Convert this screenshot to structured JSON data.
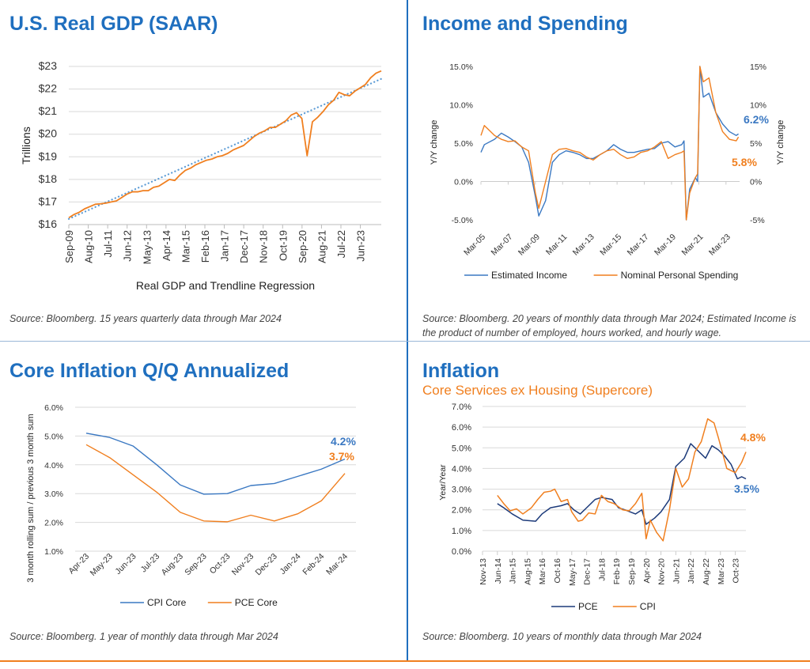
{
  "panels": {
    "gdp": {
      "title": "U.S. Real GDP (SAAR)",
      "source": "Source: Bloomberg. 15 years quarterly data through Mar 2024"
    },
    "income": {
      "title": "Income and Spending",
      "source": "Source: Bloomberg. 20 years of monthly data through Mar 2024; Estimated Income is the product of number of employed, hours worked, and hourly wage."
    },
    "core": {
      "title": "Core Inflation Q/Q Annualized",
      "source": "Source: Bloomberg. 1 year of monthly data through Mar 2024"
    },
    "supercore": {
      "title": "Inflation",
      "subtitle": "Core Services ex Housing (Supercore)",
      "source": "Source: Bloomberg. 10 years of monthly data through Mar 2024"
    }
  },
  "colors": {
    "title": "#1f6fbf",
    "orange": "#f07f1f",
    "blue": "#3a78c2",
    "navy": "#1c3a7a",
    "trend": "#5b9bd5"
  },
  "chart_data": [
    {
      "type": "line",
      "ylabel": "Trillions",
      "xlabel": "Real GDP and Trendline Regression",
      "ylim": [
        16,
        23
      ],
      "yticks": [
        "$16",
        "$17",
        "$18",
        "$19",
        "$20",
        "$21",
        "$22",
        "$23"
      ],
      "xticks": [
        "Sep-09",
        "Aug-10",
        "Jul-11",
        "Jun-12",
        "May-13",
        "Apr-14",
        "Mar-15",
        "Feb-16",
        "Jan-17",
        "Dec-17",
        "Nov-18",
        "Oct-19",
        "Sep-20",
        "Aug-21",
        "Jul-22",
        "Jun-23"
      ],
      "grid": true,
      "series": [
        {
          "style": "solid",
          "color": "#f07f1f",
          "values": [
            16.3,
            16.45,
            16.55,
            16.7,
            16.8,
            16.9,
            16.92,
            16.95,
            17.0,
            17.05,
            17.2,
            17.35,
            17.45,
            17.45,
            17.5,
            17.5,
            17.65,
            17.7,
            17.85,
            18.0,
            17.95,
            18.2,
            18.4,
            18.5,
            18.65,
            18.75,
            18.85,
            18.9,
            19.0,
            19.05,
            19.15,
            19.3,
            19.4,
            19.5,
            19.7,
            19.9,
            20.05,
            20.15,
            20.3,
            20.3,
            20.45,
            20.6,
            20.85,
            20.95,
            20.7,
            19.05,
            20.55,
            20.75,
            21.0,
            21.3,
            21.5,
            21.85,
            21.75,
            21.7,
            21.9,
            22.05,
            22.2,
            22.5,
            22.7,
            22.8
          ]
        },
        {
          "style": "dotted",
          "color": "#5b9bd5",
          "values": [
            16.25,
            22.45
          ]
        }
      ]
    },
    {
      "type": "line",
      "ylabel_left": "Y/Y change",
      "ylabel_right": "Y/Y change",
      "ylim": [
        -5,
        15
      ],
      "yticks_left": [
        "-5.0%",
        "0.0%",
        "5.0%",
        "10.0%",
        "15.0%"
      ],
      "yticks_right": [
        "-5%",
        "0%",
        "5%",
        "10%",
        "15%"
      ],
      "xticks": [
        "Mar-05",
        "Mar-07",
        "Mar-09",
        "Mar-11",
        "Mar-13",
        "Mar-15",
        "Mar-17",
        "Mar-19",
        "Mar-21",
        "Mar-23"
      ],
      "legend": "bottom",
      "annotations": [
        {
          "text": "6.2%",
          "color": "#3a78c2"
        },
        {
          "text": "5.8%",
          "color": "#f07f1f"
        }
      ],
      "series": [
        {
          "name": "Estimated Income",
          "color": "#3a78c2",
          "points": [
            [
              "Mar-05",
              3.8
            ],
            [
              "Jun-05",
              4.8
            ],
            [
              "Mar-06",
              5.5
            ],
            [
              "Sep-06",
              6.3
            ],
            [
              "Mar-07",
              5.8
            ],
            [
              "Sep-07",
              5.2
            ],
            [
              "Mar-08",
              4.5
            ],
            [
              "Sep-08",
              2.5
            ],
            [
              "Mar-09",
              -2.0
            ],
            [
              "Jun-09",
              -4.5
            ],
            [
              "Dec-09",
              -2.5
            ],
            [
              "Jun-10",
              2.5
            ],
            [
              "Dec-10",
              3.5
            ],
            [
              "Jun-11",
              4.0
            ],
            [
              "Dec-11",
              3.8
            ],
            [
              "Jun-12",
              3.5
            ],
            [
              "Dec-12",
              3.0
            ],
            [
              "Jun-13",
              3.0
            ],
            [
              "Dec-13",
              3.5
            ],
            [
              "Jun-14",
              4.0
            ],
            [
              "Dec-14",
              4.8
            ],
            [
              "Jun-15",
              4.2
            ],
            [
              "Dec-15",
              3.8
            ],
            [
              "Jun-16",
              3.8
            ],
            [
              "Dec-16",
              4.0
            ],
            [
              "Jun-17",
              4.2
            ],
            [
              "Dec-17",
              4.3
            ],
            [
              "Jun-18",
              5.0
            ],
            [
              "Dec-18",
              5.2
            ],
            [
              "Jun-19",
              4.5
            ],
            [
              "Dec-19",
              4.8
            ],
            [
              "Feb-20",
              5.3
            ],
            [
              "Apr-20",
              -5.0
            ],
            [
              "Jul-20",
              -1.0
            ],
            [
              "Dec-20",
              0.5
            ],
            [
              "Feb-21",
              0.0
            ],
            [
              "Apr-21",
              15.0
            ],
            [
              "Jul-21",
              11.0
            ],
            [
              "Dec-21",
              11.5
            ],
            [
              "Jun-22",
              9.0
            ],
            [
              "Dec-22",
              7.5
            ],
            [
              "Jun-23",
              6.5
            ],
            [
              "Dec-23",
              6.0
            ],
            [
              "Feb-24",
              6.2
            ]
          ]
        },
        {
          "name": "Nominal Personal Spending",
          "color": "#f07f1f",
          "points": [
            [
              "Mar-05",
              6.0
            ],
            [
              "Jun-05",
              7.3
            ],
            [
              "Mar-06",
              6.0
            ],
            [
              "Sep-06",
              5.5
            ],
            [
              "Mar-07",
              5.2
            ],
            [
              "Sep-07",
              5.3
            ],
            [
              "Mar-08",
              4.5
            ],
            [
              "Sep-08",
              4.0
            ],
            [
              "Mar-09",
              -1.5
            ],
            [
              "Jun-09",
              -3.5
            ],
            [
              "Dec-09",
              0.0
            ],
            [
              "Jun-10",
              3.5
            ],
            [
              "Dec-10",
              4.2
            ],
            [
              "Jun-11",
              4.3
            ],
            [
              "Dec-11",
              4.0
            ],
            [
              "Jun-12",
              3.8
            ],
            [
              "Dec-12",
              3.2
            ],
            [
              "Jun-13",
              2.8
            ],
            [
              "Dec-13",
              3.5
            ],
            [
              "Jun-14",
              4.0
            ],
            [
              "Dec-14",
              4.2
            ],
            [
              "Jun-15",
              3.5
            ],
            [
              "Dec-15",
              3.0
            ],
            [
              "Jun-16",
              3.2
            ],
            [
              "Dec-16",
              3.8
            ],
            [
              "Jun-17",
              4.0
            ],
            [
              "Dec-17",
              4.5
            ],
            [
              "Jun-18",
              5.2
            ],
            [
              "Dec-18",
              3.0
            ],
            [
              "Jun-19",
              3.5
            ],
            [
              "Dec-19",
              3.8
            ],
            [
              "Feb-20",
              4.0
            ],
            [
              "Apr-20",
              -5.0
            ],
            [
              "Jul-20",
              -1.5
            ],
            [
              "Dec-20",
              0.5
            ],
            [
              "Feb-21",
              1.0
            ],
            [
              "Apr-21",
              15.0
            ],
            [
              "Jul-21",
              13.0
            ],
            [
              "Dec-21",
              13.5
            ],
            [
              "Jun-22",
              9.0
            ],
            [
              "Dec-22",
              6.5
            ],
            [
              "Jun-23",
              5.5
            ],
            [
              "Dec-23",
              5.3
            ],
            [
              "Feb-24",
              5.8
            ]
          ]
        }
      ]
    },
    {
      "type": "line",
      "ylabel": "3 month rolling sum / previous 3 month sum",
      "ylim": [
        1,
        6
      ],
      "yticks": [
        "1.0%",
        "2.0%",
        "3.0%",
        "4.0%",
        "5.0%",
        "6.0%"
      ],
      "categories": [
        "Apr-23",
        "May-23",
        "Jun-23",
        "Jul-23",
        "Aug-23",
        "Sep-23",
        "Oct-23",
        "Nov-23",
        "Dec-23",
        "Jan-24",
        "Feb-24",
        "Mar-24"
      ],
      "legend": "bottom",
      "grid": true,
      "annotations": [
        {
          "text": "4.2%",
          "color": "#3a78c2"
        },
        {
          "text": "3.7%",
          "color": "#f07f1f"
        }
      ],
      "series": [
        {
          "name": "CPI Core",
          "color": "#3a78c2",
          "values": [
            5.1,
            4.95,
            4.65,
            4.0,
            3.3,
            2.98,
            3.0,
            3.28,
            3.35,
            3.6,
            3.85,
            4.2
          ]
        },
        {
          "name": "PCE Core",
          "color": "#f07f1f",
          "values": [
            4.7,
            4.25,
            3.65,
            3.05,
            2.35,
            2.05,
            2.02,
            2.25,
            2.05,
            2.3,
            2.75,
            3.7
          ]
        }
      ]
    },
    {
      "type": "line",
      "ylabel": "Year/Year",
      "ylim": [
        0,
        7
      ],
      "yticks": [
        "0.0%",
        "1.0%",
        "2.0%",
        "3.0%",
        "4.0%",
        "5.0%",
        "6.0%",
        "7.0%"
      ],
      "xticks": [
        "Nov-13",
        "Jun-14",
        "Jan-15",
        "Aug-15",
        "Mar-16",
        "Oct-16",
        "May-17",
        "Dec-17",
        "Jul-18",
        "Feb-19",
        "Sep-19",
        "Apr-20",
        "Nov-20",
        "Jun-21",
        "Jan-22",
        "Aug-22",
        "Mar-23",
        "Oct-23"
      ],
      "legend": "bottom",
      "grid": true,
      "annotations": [
        {
          "text": "4.8%",
          "color": "#f07f1f"
        },
        {
          "text": "3.5%",
          "color": "#3a78c2"
        }
      ],
      "series": [
        {
          "name": "PCE",
          "color": "#1c3a7a",
          "points": [
            [
              "Jun-14",
              2.3
            ],
            [
              "Sep-14",
              2.1
            ],
            [
              "Jan-15",
              1.8
            ],
            [
              "Jun-15",
              1.5
            ],
            [
              "Dec-15",
              1.45
            ],
            [
              "Mar-16",
              1.8
            ],
            [
              "Jul-16",
              2.1
            ],
            [
              "Dec-16",
              2.2
            ],
            [
              "Mar-17",
              2.3
            ],
            [
              "Jun-17",
              2.0
            ],
            [
              "Sep-17",
              1.8
            ],
            [
              "Dec-17",
              2.1
            ],
            [
              "Apr-18",
              2.5
            ],
            [
              "Jul-18",
              2.6
            ],
            [
              "Dec-18",
              2.5
            ],
            [
              "Mar-19",
              2.1
            ],
            [
              "Jun-19",
              2.0
            ],
            [
              "Nov-19",
              1.8
            ],
            [
              "Feb-20",
              2.0
            ],
            [
              "Apr-20",
              1.3
            ],
            [
              "Aug-20",
              1.6
            ],
            [
              "Nov-20",
              1.9
            ],
            [
              "Mar-21",
              2.5
            ],
            [
              "Jun-21",
              4.1
            ],
            [
              "Oct-21",
              4.5
            ],
            [
              "Jan-22",
              5.2
            ],
            [
              "Apr-22",
              4.9
            ],
            [
              "Aug-22",
              4.5
            ],
            [
              "Nov-22",
              5.1
            ],
            [
              "Feb-23",
              4.9
            ],
            [
              "May-23",
              4.6
            ],
            [
              "Aug-23",
              4.2
            ],
            [
              "Nov-23",
              3.5
            ],
            [
              "Jan-24",
              3.6
            ],
            [
              "Mar-24",
              3.5
            ]
          ]
        },
        {
          "name": "CPI",
          "color": "#f07f1f",
          "points": [
            [
              "Jun-14",
              2.7
            ],
            [
              "Sep-14",
              2.3
            ],
            [
              "Dec-14",
              1.95
            ],
            [
              "Mar-15",
              2.05
            ],
            [
              "Jun-15",
              1.8
            ],
            [
              "Oct-15",
              2.1
            ],
            [
              "Jan-16",
              2.5
            ],
            [
              "Apr-16",
              2.85
            ],
            [
              "Jul-16",
              2.9
            ],
            [
              "Sep-16",
              3.0
            ],
            [
              "Dec-16",
              2.4
            ],
            [
              "Mar-17",
              2.5
            ],
            [
              "May-17",
              1.9
            ],
            [
              "Aug-17",
              1.45
            ],
            [
              "Oct-17",
              1.5
            ],
            [
              "Jan-18",
              1.85
            ],
            [
              "Apr-18",
              1.8
            ],
            [
              "Jul-18",
              2.7
            ],
            [
              "Oct-18",
              2.4
            ],
            [
              "Jan-19",
              2.3
            ],
            [
              "May-19",
              2.0
            ],
            [
              "Aug-19",
              1.95
            ],
            [
              "Nov-19",
              2.3
            ],
            [
              "Feb-20",
              2.8
            ],
            [
              "Apr-20",
              0.6
            ],
            [
              "Jun-20",
              1.5
            ],
            [
              "Sep-20",
              0.9
            ],
            [
              "Dec-20",
              0.5
            ],
            [
              "Mar-21",
              2.0
            ],
            [
              "Jun-21",
              4.0
            ],
            [
              "Sep-21",
              3.1
            ],
            [
              "Dec-21",
              3.5
            ],
            [
              "Mar-22",
              4.8
            ],
            [
              "Jun-22",
              5.3
            ],
            [
              "Sep-22",
              6.4
            ],
            [
              "Dec-22",
              6.2
            ],
            [
              "Feb-23",
              5.5
            ],
            [
              "Jun-23",
              4.0
            ],
            [
              "Oct-23",
              3.8
            ],
            [
              "Jan-24",
              4.3
            ],
            [
              "Mar-24",
              4.8
            ]
          ]
        }
      ]
    }
  ]
}
